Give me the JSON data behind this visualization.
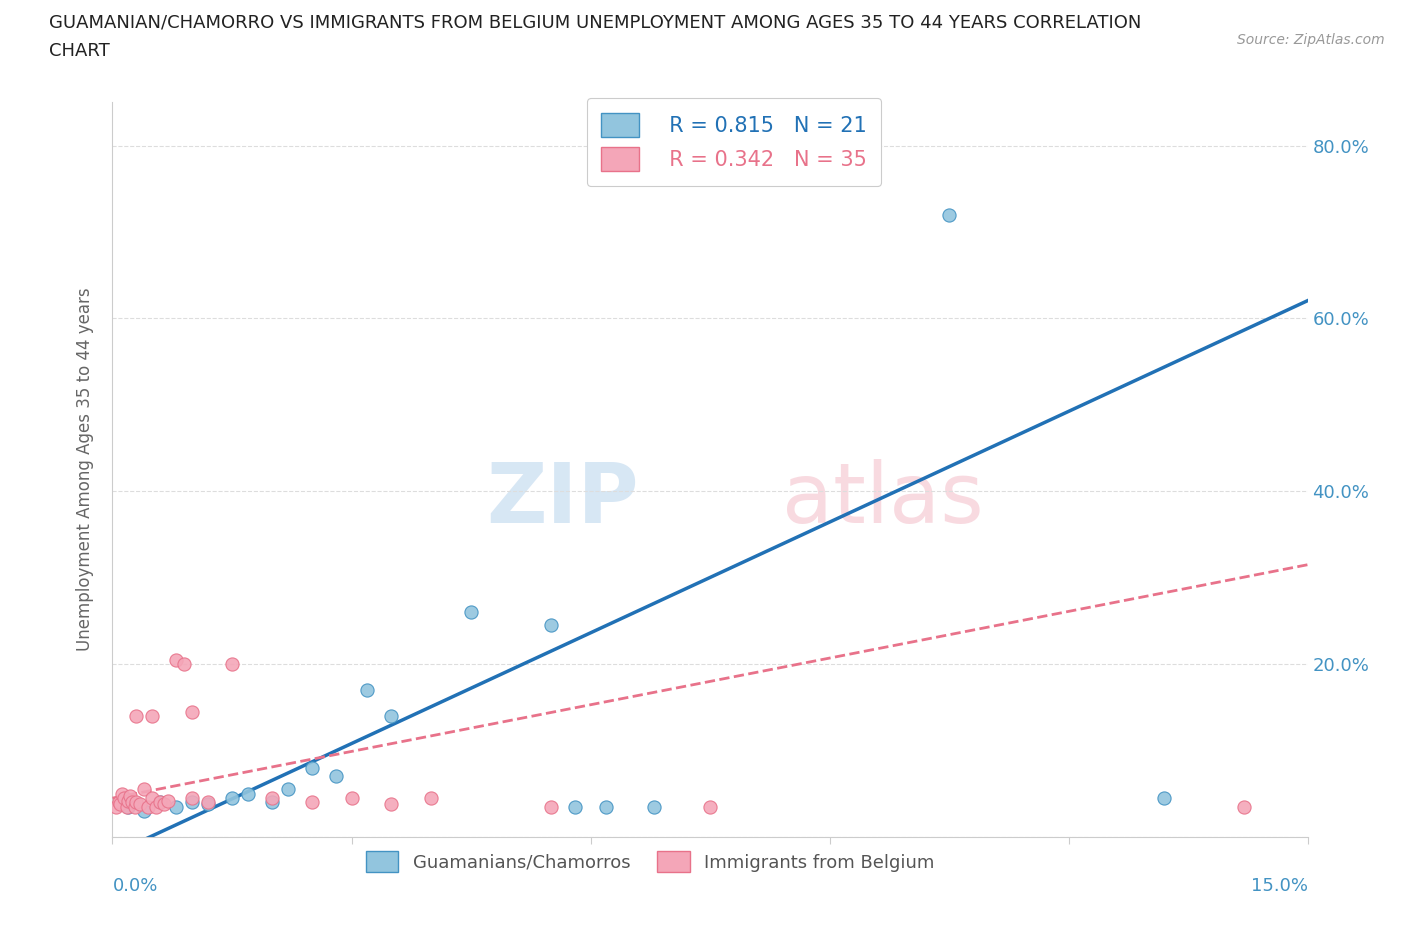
{
  "title_line1": "GUAMANIAN/CHAMORRO VS IMMIGRANTS FROM BELGIUM UNEMPLOYMENT AMONG AGES 35 TO 44 YEARS CORRELATION",
  "title_line2": "CHART",
  "source": "Source: ZipAtlas.com",
  "ylabel": "Unemployment Among Ages 35 to 44 years",
  "xlim": [
    0.0,
    15.0
  ],
  "ylim": [
    0.0,
    85.0
  ],
  "watermark_zip": "ZIP",
  "watermark_atlas": "atlas",
  "blue_R": 0.815,
  "blue_N": 21,
  "pink_R": 0.342,
  "pink_N": 35,
  "blue_color": "#92C5DE",
  "pink_color": "#F4A6B8",
  "blue_edge_color": "#4393C3",
  "pink_edge_color": "#E8728A",
  "blue_line_color": "#2171B5",
  "pink_line_color": "#E8728A",
  "right_axis_color": "#4393C3",
  "xlabel_color": "#4393C3",
  "blue_scatter": [
    [
      0.2,
      3.5
    ],
    [
      0.4,
      3.0
    ],
    [
      0.6,
      4.0
    ],
    [
      0.8,
      3.5
    ],
    [
      1.0,
      4.0
    ],
    [
      1.2,
      3.8
    ],
    [
      1.5,
      4.5
    ],
    [
      1.7,
      5.0
    ],
    [
      2.0,
      4.0
    ],
    [
      2.2,
      5.5
    ],
    [
      2.5,
      8.0
    ],
    [
      2.8,
      7.0
    ],
    [
      3.2,
      17.0
    ],
    [
      3.5,
      14.0
    ],
    [
      4.5,
      26.0
    ],
    [
      5.5,
      24.5
    ],
    [
      5.8,
      3.5
    ],
    [
      6.2,
      3.5
    ],
    [
      6.8,
      3.5
    ],
    [
      10.5,
      72.0
    ],
    [
      13.2,
      4.5
    ]
  ],
  "pink_scatter": [
    [
      0.05,
      3.5
    ],
    [
      0.08,
      4.0
    ],
    [
      0.1,
      3.8
    ],
    [
      0.12,
      5.0
    ],
    [
      0.15,
      4.5
    ],
    [
      0.18,
      3.5
    ],
    [
      0.2,
      4.2
    ],
    [
      0.22,
      4.8
    ],
    [
      0.25,
      4.0
    ],
    [
      0.28,
      3.5
    ],
    [
      0.3,
      4.0
    ],
    [
      0.35,
      3.8
    ],
    [
      0.4,
      5.5
    ],
    [
      0.45,
      3.5
    ],
    [
      0.5,
      4.5
    ],
    [
      0.55,
      3.5
    ],
    [
      0.6,
      4.0
    ],
    [
      0.65,
      3.8
    ],
    [
      0.7,
      4.2
    ],
    [
      0.8,
      20.5
    ],
    [
      0.9,
      20.0
    ],
    [
      1.0,
      4.5
    ],
    [
      1.2,
      4.0
    ],
    [
      1.5,
      20.0
    ],
    [
      2.0,
      4.5
    ],
    [
      2.5,
      4.0
    ],
    [
      1.0,
      14.5
    ],
    [
      0.5,
      14.0
    ],
    [
      0.3,
      14.0
    ],
    [
      3.0,
      4.5
    ],
    [
      3.5,
      3.8
    ],
    [
      4.0,
      4.5
    ],
    [
      5.5,
      3.5
    ],
    [
      7.5,
      3.5
    ],
    [
      14.2,
      3.5
    ]
  ]
}
